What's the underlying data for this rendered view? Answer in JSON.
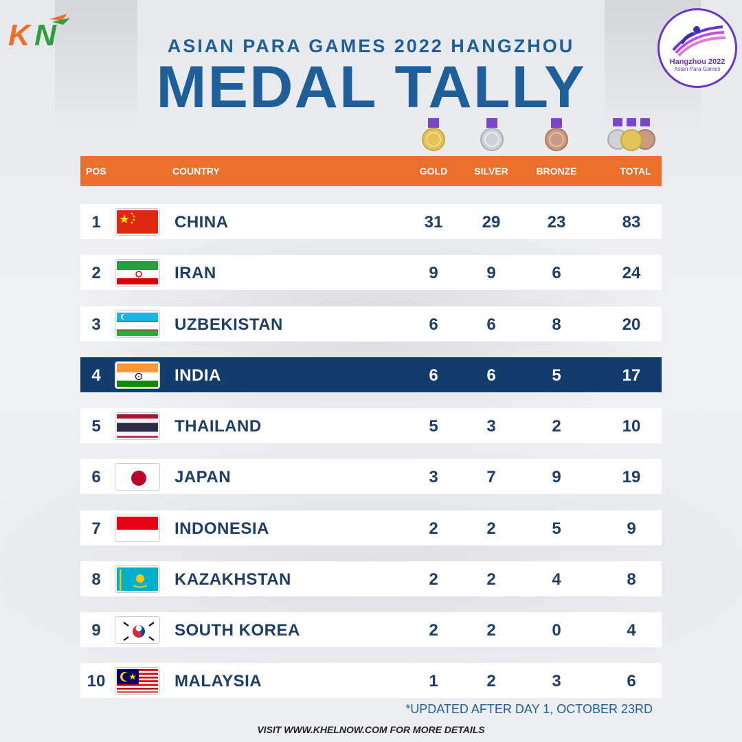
{
  "brand": {
    "logo_text": "KN",
    "colors": {
      "orange": "#ec6f2b",
      "green": "#2e9e3e",
      "navy": "#123c6b",
      "blue": "#1f5f99",
      "purple": "#6d35c6"
    }
  },
  "badge": {
    "title": "Hangzhou 2022",
    "subtitle": "Asian Para Games"
  },
  "header": {
    "subtitle": "ASIAN PARA GAMES 2022 HANGZHOU",
    "title": "MEDAL TALLY"
  },
  "medal_icons": [
    "gold-medal-icon",
    "silver-medal-icon",
    "bronze-medal-icon",
    "total-medals-icon"
  ],
  "table": {
    "columns": {
      "pos": "POS",
      "country": "COUNTRY",
      "gold": "GOLD",
      "silver": "SILVER",
      "bronze": "BRONZE",
      "total": "TOTAL"
    },
    "rows": [
      {
        "pos": "1",
        "country": "CHINA",
        "flag": "china-flag",
        "gold": "31",
        "silver": "29",
        "bronze": "23",
        "total": "83"
      },
      {
        "pos": "2",
        "country": "IRAN",
        "flag": "iran-flag",
        "gold": "9",
        "silver": "9",
        "bronze": "6",
        "total": "24"
      },
      {
        "pos": "3",
        "country": "UZBEKISTAN",
        "flag": "uzbekistan-flag",
        "gold": "6",
        "silver": "6",
        "bronze": "8",
        "total": "20"
      },
      {
        "pos": "4",
        "country": "INDIA",
        "flag": "india-flag",
        "gold": "6",
        "silver": "6",
        "bronze": "5",
        "total": "17",
        "highlight": true
      },
      {
        "pos": "5",
        "country": "THAILAND",
        "flag": "thailand-flag",
        "gold": "5",
        "silver": "3",
        "bronze": "2",
        "total": "10"
      },
      {
        "pos": "6",
        "country": "JAPAN",
        "flag": "japan-flag",
        "gold": "3",
        "silver": "7",
        "bronze": "9",
        "total": "19"
      },
      {
        "pos": "7",
        "country": "INDONESIA",
        "flag": "indonesia-flag",
        "gold": "2",
        "silver": "2",
        "bronze": "5",
        "total": "9"
      },
      {
        "pos": "8",
        "country": "KAZAKHSTAN",
        "flag": "kazakhstan-flag",
        "gold": "2",
        "silver": "2",
        "bronze": "4",
        "total": "8"
      },
      {
        "pos": "9",
        "country": "SOUTH KOREA",
        "flag": "south-korea-flag",
        "gold": "2",
        "silver": "2",
        "bronze": "0",
        "total": "4"
      },
      {
        "pos": "10",
        "country": "MALAYSIA",
        "flag": "malaysia-flag",
        "gold": "1",
        "silver": "2",
        "bronze": "3",
        "total": "6"
      }
    ]
  },
  "footnote": "*UPDATED AFTER DAY 1, OCTOBER 23RD",
  "visit": "VISIT WWW.KHELNOW.COM FOR MORE DETAILS"
}
